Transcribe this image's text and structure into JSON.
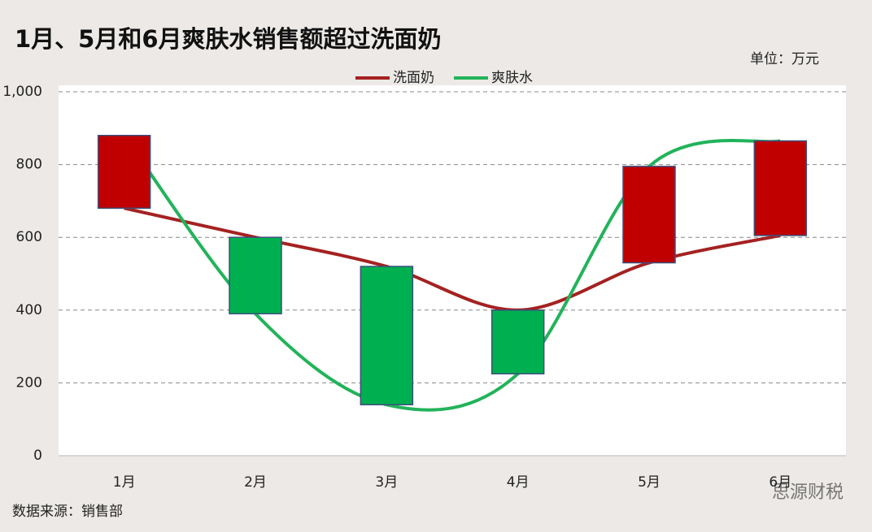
{
  "chart_data": {
    "type": "line",
    "title": "1月、5月和6月爽肤水销售额超过洗面奶",
    "unit_label": "单位：万元",
    "source": "数据来源：销售部",
    "watermark": "思源财税",
    "categories": [
      "1月",
      "2月",
      "3月",
      "4月",
      "5月",
      "6月"
    ],
    "series": [
      {
        "name": "洗面奶",
        "color": "#a52121",
        "values": [
          680,
          600,
          520,
          400,
          530,
          605
        ]
      },
      {
        "name": "爽肤水",
        "color": "#22b35a",
        "values": [
          880,
          390,
          140,
          225,
          795,
          865
        ]
      }
    ],
    "up_down_bars": true,
    "up_color": "#c00000",
    "down_color": "#00b050",
    "smooth": true,
    "ylim": [
      0,
      1000
    ],
    "yticks": [
      0,
      200,
      400,
      600,
      800,
      {
        "value": 1000,
        "label": "1,000"
      }
    ],
    "grid": true
  }
}
